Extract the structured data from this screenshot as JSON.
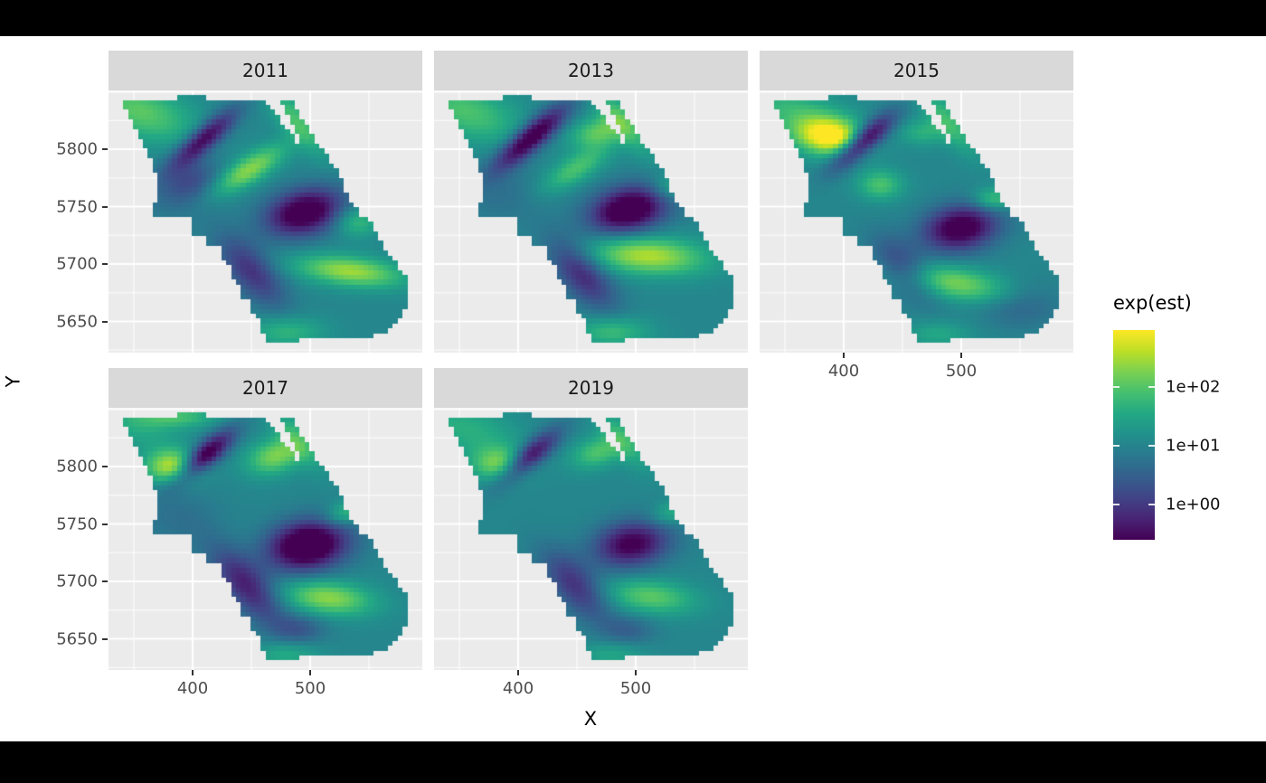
{
  "colors": {
    "background": "#ffffff",
    "letterbox": "#000000",
    "panel_bg": "#ebebeb",
    "strip_bg": "#d9d9d9",
    "grid": "#ffffff",
    "axis_text": "#4d4d4d",
    "title_text": "#000000",
    "strip_text": "#1a1a1a",
    "tick_mark": "#333333",
    "viridis": [
      "#440154",
      "#482475",
      "#414487",
      "#355f8d",
      "#2a788e",
      "#21918c",
      "#22a884",
      "#44bf70",
      "#7ad151",
      "#bddf26",
      "#fde725"
    ]
  },
  "chart_data": {
    "type": "heatmap",
    "subtype": "faceted-spatial-raster",
    "title": "",
    "xlabel": "X",
    "ylabel": "Y",
    "x_ticks": [
      400,
      500
    ],
    "x_minor_ticks": [
      350,
      450,
      550
    ],
    "y_ticks": [
      5800,
      5750,
      5700,
      5650
    ],
    "y_major_grid": [
      5850,
      5800,
      5750,
      5700,
      5650
    ],
    "y_minor_grid": [
      5825,
      5775,
      5725,
      5675,
      5625
    ],
    "x_range": [
      328,
      595
    ],
    "y_range": [
      5622,
      5851
    ],
    "grid": "on",
    "legend": {
      "title": "exp(est)",
      "position": "right",
      "colormap": "viridis",
      "scale": "log10",
      "tick_labels": [
        "1e+02",
        "1e+01",
        "1e+00"
      ],
      "tick_values": [
        100,
        10,
        1
      ],
      "log10_domain": [
        -0.6,
        2.9
      ]
    },
    "field_base_log10": 1.0,
    "blob_format": [
      "x_norm",
      "y_norm",
      "amplitude_log10",
      "sigma_major",
      "sigma_minor",
      "rotation_deg"
    ],
    "region_outline": [
      [
        0.045,
        0.035
      ],
      [
        0.28,
        0.025
      ],
      [
        0.5,
        0.042
      ],
      [
        0.6,
        0.195
      ],
      [
        0.625,
        0.215
      ],
      [
        0.552,
        0.042
      ],
      [
        0.584,
        0.035
      ],
      [
        0.664,
        0.2
      ],
      [
        0.695,
        0.245
      ],
      [
        0.728,
        0.3
      ],
      [
        0.748,
        0.36
      ],
      [
        0.772,
        0.425
      ],
      [
        0.806,
        0.475
      ],
      [
        0.84,
        0.5
      ],
      [
        0.857,
        0.55
      ],
      [
        0.875,
        0.6
      ],
      [
        0.905,
        0.645
      ],
      [
        0.94,
        0.69
      ],
      [
        0.955,
        0.74
      ],
      [
        0.955,
        0.795
      ],
      [
        0.938,
        0.85
      ],
      [
        0.9,
        0.915
      ],
      [
        0.845,
        0.935
      ],
      [
        0.77,
        0.952
      ],
      [
        0.62,
        0.945
      ],
      [
        0.565,
        0.972
      ],
      [
        0.508,
        0.958
      ],
      [
        0.487,
        0.915
      ],
      [
        0.472,
        0.862
      ],
      [
        0.448,
        0.838
      ],
      [
        0.458,
        0.805
      ],
      [
        0.424,
        0.792
      ],
      [
        0.414,
        0.747
      ],
      [
        0.392,
        0.722
      ],
      [
        0.392,
        0.667
      ],
      [
        0.358,
        0.647
      ],
      [
        0.352,
        0.602
      ],
      [
        0.318,
        0.587
      ],
      [
        0.303,
        0.547
      ],
      [
        0.272,
        0.547
      ],
      [
        0.267,
        0.477
      ],
      [
        0.143,
        0.477
      ],
      [
        0.15,
        0.402
      ],
      [
        0.157,
        0.347
      ],
      [
        0.146,
        0.302
      ],
      [
        0.126,
        0.247
      ],
      [
        0.096,
        0.162
      ],
      [
        0.066,
        0.102
      ]
    ],
    "facets": [
      {
        "label": "2011",
        "blobs": [
          [
            0.1,
            0.08,
            1.0,
            0.13,
            0.07,
            25
          ],
          [
            0.6,
            0.12,
            0.9,
            0.1,
            0.035,
            55
          ],
          [
            0.305,
            0.185,
            -1.7,
            0.1,
            0.03,
            -47
          ],
          [
            0.27,
            0.34,
            -0.6,
            0.07,
            0.05,
            -30
          ],
          [
            0.445,
            0.305,
            1.3,
            0.1,
            0.035,
            -38
          ],
          [
            0.625,
            0.465,
            -2.0,
            0.09,
            0.06,
            -20
          ],
          [
            0.79,
            0.5,
            0.8,
            0.05,
            0.04,
            0
          ],
          [
            0.77,
            0.69,
            1.4,
            0.12,
            0.04,
            8
          ],
          [
            0.455,
            0.69,
            -1.1,
            0.11,
            0.05,
            55
          ],
          [
            0.57,
            0.92,
            0.7,
            0.08,
            0.04,
            0
          ],
          [
            0.22,
            0.4,
            -0.3,
            0.1,
            0.08,
            0
          ]
        ]
      },
      {
        "label": "2013",
        "blobs": [
          [
            0.1,
            0.08,
            0.9,
            0.13,
            0.07,
            25
          ],
          [
            0.6,
            0.12,
            0.9,
            0.1,
            0.035,
            55
          ],
          [
            0.31,
            0.18,
            -2.0,
            0.11,
            0.032,
            -47
          ],
          [
            0.52,
            0.16,
            1.0,
            0.06,
            0.04,
            -20
          ],
          [
            0.45,
            0.3,
            0.9,
            0.09,
            0.035,
            -38
          ],
          [
            0.62,
            0.455,
            -2.1,
            0.09,
            0.06,
            -20
          ],
          [
            0.76,
            0.37,
            0.7,
            0.05,
            0.035,
            0
          ],
          [
            0.68,
            0.63,
            1.5,
            0.13,
            0.05,
            5
          ],
          [
            0.47,
            0.7,
            -1.2,
            0.11,
            0.05,
            55
          ],
          [
            0.57,
            0.92,
            0.8,
            0.08,
            0.04,
            0
          ],
          [
            0.22,
            0.4,
            -0.3,
            0.1,
            0.08,
            0
          ]
        ]
      },
      {
        "label": "2015",
        "blobs": [
          [
            0.1,
            0.08,
            0.7,
            0.13,
            0.07,
            25
          ],
          [
            0.6,
            0.12,
            0.8,
            0.1,
            0.035,
            55
          ],
          [
            0.225,
            0.175,
            2.0,
            0.075,
            0.05,
            10
          ],
          [
            0.33,
            0.195,
            -2.0,
            0.09,
            0.03,
            -47
          ],
          [
            0.385,
            0.36,
            0.9,
            0.05,
            0.04,
            0
          ],
          [
            0.52,
            0.16,
            0.6,
            0.05,
            0.035,
            0
          ],
          [
            0.745,
            0.415,
            0.9,
            0.045,
            0.03,
            0
          ],
          [
            0.64,
            0.525,
            -1.9,
            0.085,
            0.06,
            -15
          ],
          [
            0.62,
            0.735,
            1.2,
            0.13,
            0.045,
            12
          ],
          [
            0.83,
            0.82,
            -0.5,
            0.09,
            0.06,
            0
          ],
          [
            0.46,
            0.68,
            -0.9,
            0.1,
            0.05,
            55
          ],
          [
            0.57,
            0.93,
            0.5,
            0.07,
            0.035,
            0
          ]
        ]
      },
      {
        "label": "2017",
        "blobs": [
          [
            0.22,
            0.035,
            0.8,
            0.09,
            0.03,
            0
          ],
          [
            0.09,
            0.07,
            0.5,
            0.1,
            0.06,
            25
          ],
          [
            0.205,
            0.225,
            1.6,
            0.06,
            0.045,
            0
          ],
          [
            0.305,
            0.185,
            -1.9,
            0.09,
            0.03,
            -47
          ],
          [
            0.53,
            0.185,
            1.2,
            0.065,
            0.045,
            -25
          ],
          [
            0.6,
            0.12,
            0.7,
            0.09,
            0.035,
            55
          ],
          [
            0.635,
            0.525,
            -2.3,
            0.09,
            0.065,
            -15
          ],
          [
            0.76,
            0.4,
            0.8,
            0.05,
            0.03,
            -20
          ],
          [
            0.7,
            0.725,
            1.3,
            0.1,
            0.045,
            8
          ],
          [
            0.44,
            0.68,
            -1.3,
            0.12,
            0.05,
            55
          ],
          [
            0.61,
            0.845,
            -0.6,
            0.06,
            0.04,
            0
          ],
          [
            0.57,
            0.94,
            0.6,
            0.07,
            0.035,
            0
          ],
          [
            0.22,
            0.42,
            -0.3,
            0.1,
            0.08,
            0
          ]
        ]
      },
      {
        "label": "2019",
        "blobs": [
          [
            0.1,
            0.08,
            0.6,
            0.13,
            0.07,
            25
          ],
          [
            0.205,
            0.215,
            1.1,
            0.06,
            0.045,
            0
          ],
          [
            0.305,
            0.185,
            -1.6,
            0.09,
            0.03,
            -47
          ],
          [
            0.52,
            0.17,
            0.9,
            0.06,
            0.04,
            -25
          ],
          [
            0.6,
            0.12,
            0.7,
            0.09,
            0.035,
            55
          ],
          [
            0.63,
            0.52,
            -1.7,
            0.085,
            0.06,
            -15
          ],
          [
            0.76,
            0.4,
            0.6,
            0.05,
            0.03,
            -20
          ],
          [
            0.69,
            0.72,
            1.0,
            0.1,
            0.045,
            8
          ],
          [
            0.45,
            0.68,
            -1.1,
            0.11,
            0.05,
            55
          ],
          [
            0.62,
            0.85,
            -0.5,
            0.06,
            0.04,
            0
          ],
          [
            0.57,
            0.94,
            0.5,
            0.07,
            0.035,
            0
          ]
        ]
      }
    ]
  }
}
